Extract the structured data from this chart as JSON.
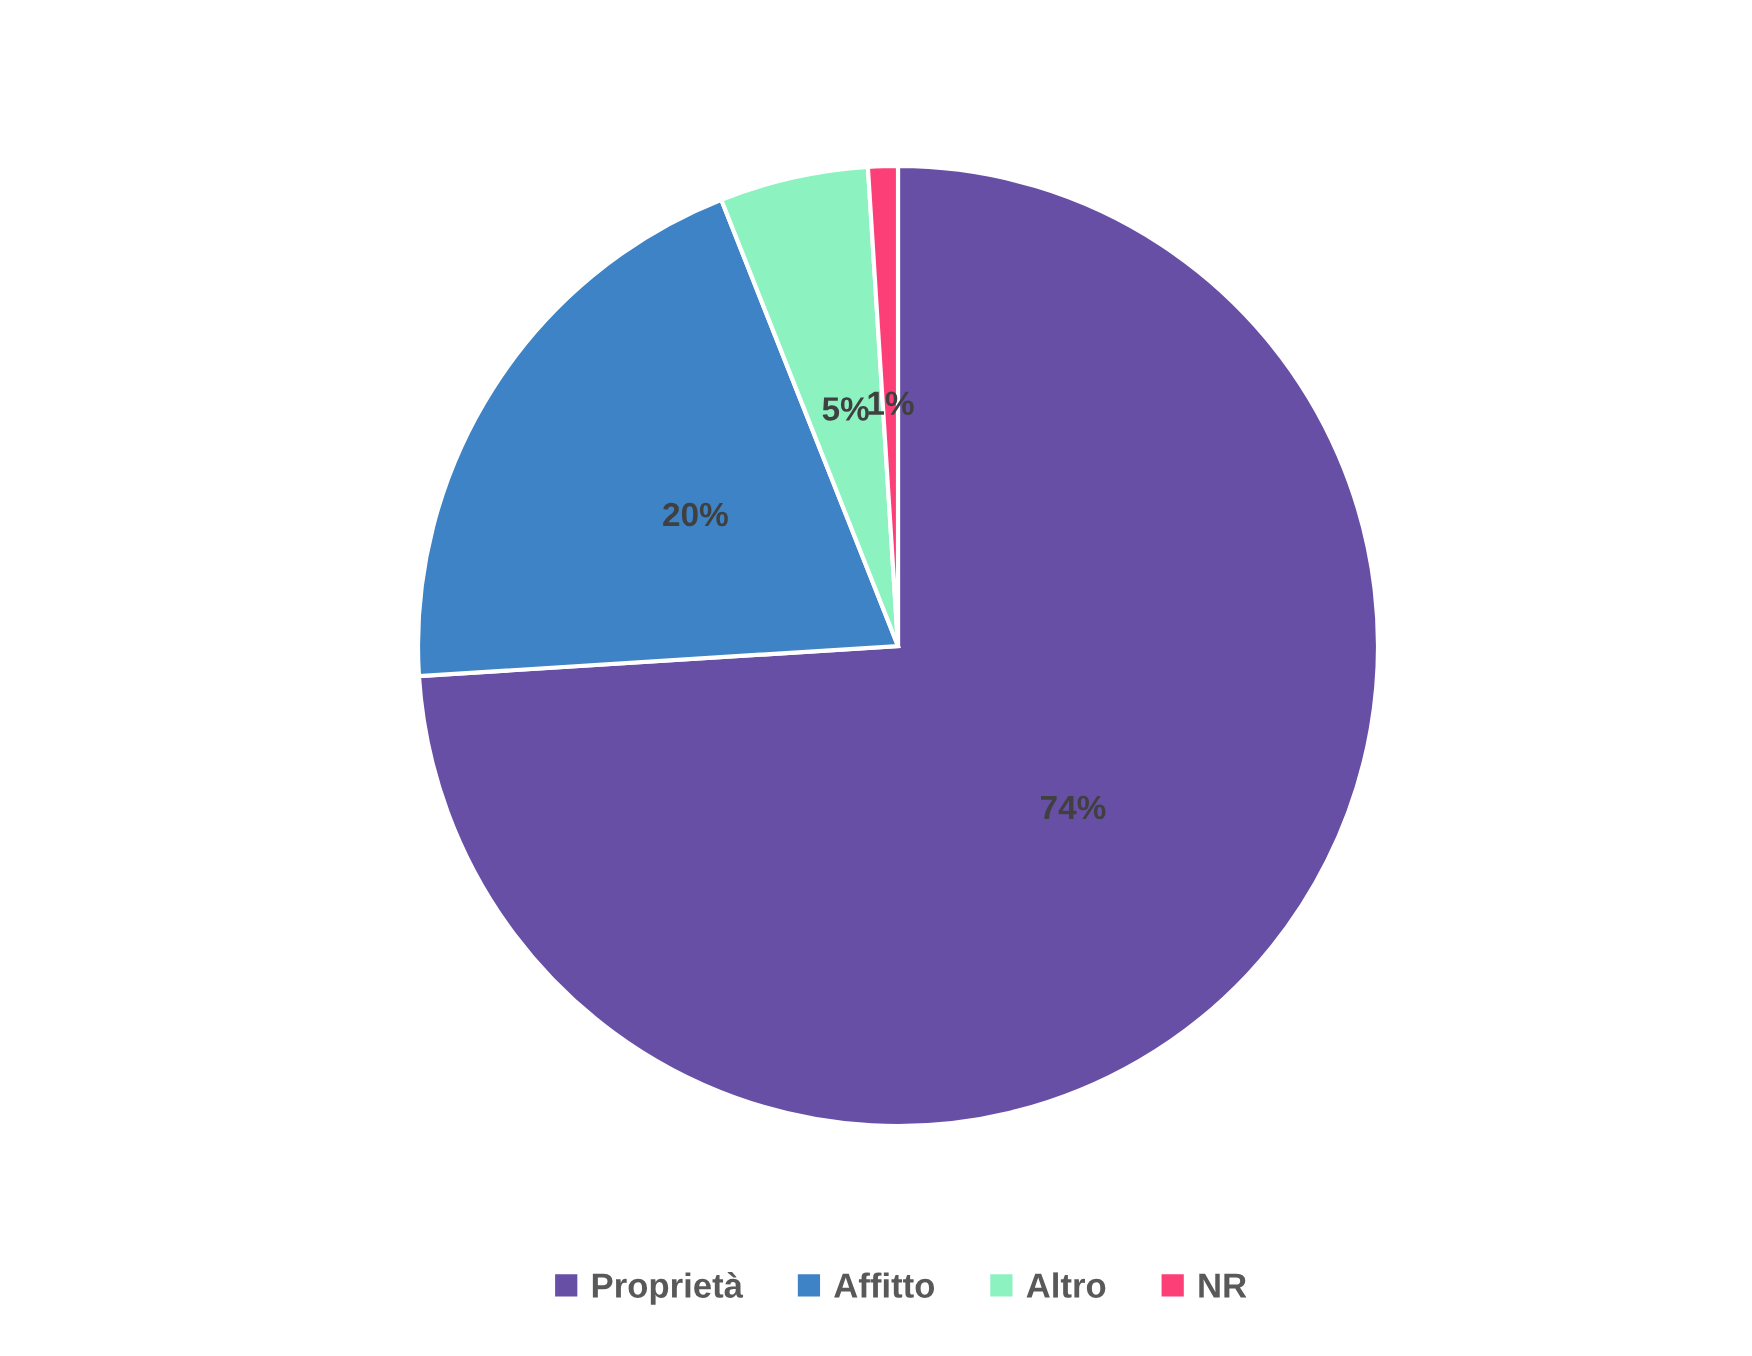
{
  "chart_data": {
    "type": "pie",
    "categories": [
      "Proprietà",
      "Affitto",
      "Altro",
      "NR"
    ],
    "values": [
      74,
      20,
      5,
      1
    ],
    "colors": [
      "#684fa6",
      "#3e83c5",
      "#8cf2c0",
      "#fd3f78"
    ],
    "value_labels": [
      "74%",
      "20%",
      "5%",
      "1%"
    ],
    "legend": "bottom"
  }
}
